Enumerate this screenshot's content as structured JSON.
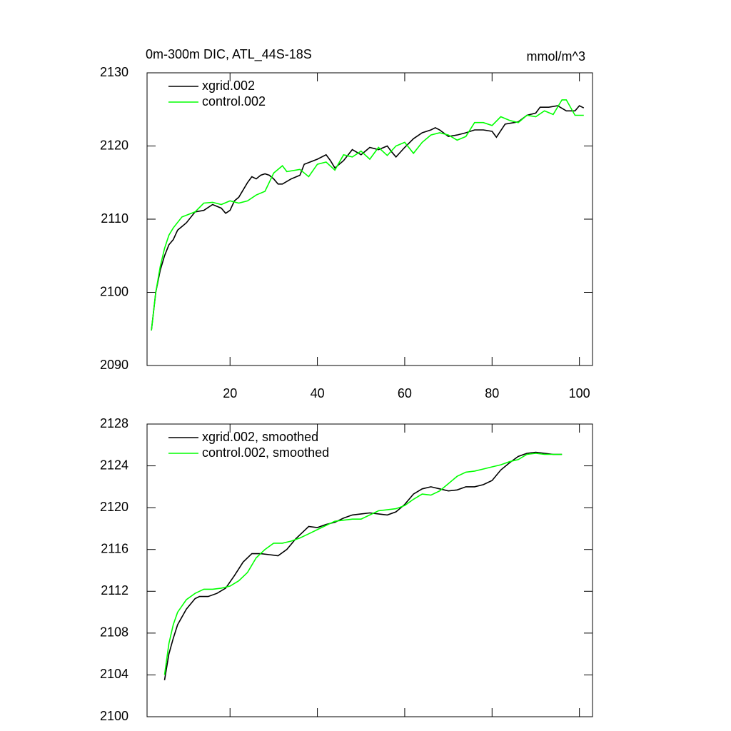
{
  "chart_data": [
    {
      "type": "line",
      "title": "0m-300m DIC, ATL_44S-18S",
      "units": "mmol/m^3",
      "xlim": [
        1,
        103
      ],
      "xticks": [
        20,
        40,
        60,
        80,
        100
      ],
      "xtick_labels": true,
      "ylim": [
        2090,
        2130
      ],
      "yticks": [
        2090,
        2100,
        2110,
        2120,
        2130
      ],
      "series": [
        {
          "name": "xgrid.002",
          "color": "#000000",
          "x": [
            2,
            3,
            4,
            5,
            6,
            7,
            8,
            10,
            12,
            14,
            16,
            18,
            19,
            20,
            21,
            22,
            24,
            25,
            26,
            27,
            28,
            29,
            30,
            31,
            32,
            34,
            36,
            37,
            40,
            42,
            43,
            44,
            46,
            48,
            50,
            52,
            54,
            56,
            57,
            58,
            60,
            62,
            64,
            66,
            67,
            68,
            70,
            72,
            74,
            76,
            78,
            80,
            81,
            83,
            86,
            88,
            90,
            91,
            93,
            95,
            97,
            99,
            100,
            101
          ],
          "values": [
            2094.8,
            2100,
            2103,
            2105,
            2106.5,
            2107.2,
            2108.5,
            2109.5,
            2111,
            2111.2,
            2112,
            2111.5,
            2110.8,
            2111.2,
            2112.5,
            2113,
            2115,
            2115.8,
            2115.5,
            2116,
            2116.2,
            2116,
            2115.5,
            2114.8,
            2114.8,
            2115.5,
            2116,
            2117.5,
            2118.2,
            2118.8,
            2118,
            2117,
            2118,
            2119.5,
            2118.8,
            2119.8,
            2119.5,
            2120,
            2119.2,
            2118.5,
            2119.8,
            2121,
            2121.8,
            2122.2,
            2122.5,
            2122.2,
            2121.3,
            2121.5,
            2121.8,
            2122.2,
            2122.2,
            2122,
            2121.2,
            2123,
            2123.3,
            2124.2,
            2124.5,
            2125.3,
            2125.3,
            2125.5,
            2124.8,
            2124.8,
            2125.5,
            2125.2
          ]
        },
        {
          "name": "control.002",
          "color": "#00ff00",
          "x": [
            2,
            3,
            4,
            5,
            6,
            7,
            9,
            12,
            14,
            16,
            18,
            20,
            22,
            24,
            26,
            28,
            30,
            32,
            33,
            36,
            38,
            40,
            42,
            44,
            46,
            48,
            50,
            52,
            54,
            56,
            58,
            60,
            62,
            64,
            66,
            68,
            70,
            72,
            74,
            76,
            78,
            80,
            82,
            84,
            86,
            88,
            90,
            92,
            94,
            96,
            97,
            99,
            101
          ],
          "values": [
            2094.8,
            2100,
            2103.5,
            2106,
            2107.8,
            2108.8,
            2110.3,
            2111,
            2112.2,
            2112.3,
            2112,
            2112.5,
            2112.2,
            2112.5,
            2113.3,
            2113.8,
            2116.3,
            2117.3,
            2116.5,
            2116.8,
            2115.8,
            2117.5,
            2117.8,
            2116.7,
            2118.8,
            2118.5,
            2119.3,
            2118.2,
            2119.8,
            2118.7,
            2120,
            2120.5,
            2119,
            2120.5,
            2121.5,
            2121.8,
            2121.5,
            2120.8,
            2121.3,
            2123.2,
            2123.2,
            2122.8,
            2124,
            2123.5,
            2123.2,
            2124.2,
            2124,
            2124.8,
            2124.3,
            2126.3,
            2126.3,
            2124.2,
            2124.2
          ]
        }
      ]
    },
    {
      "type": "line",
      "xlim": [
        1,
        103
      ],
      "xticks": [
        20,
        40,
        60,
        80,
        100
      ],
      "xtick_labels": false,
      "ylim": [
        2100,
        2128
      ],
      "yticks": [
        2100,
        2104,
        2108,
        2112,
        2116,
        2120,
        2124,
        2128
      ],
      "series": [
        {
          "name": "xgrid.002, smoothed",
          "color": "#000000",
          "x": [
            5,
            6,
            7,
            8,
            10,
            12,
            13,
            15,
            17,
            19,
            21,
            23,
            25,
            27,
            29,
            31,
            33,
            35,
            37,
            38,
            40,
            42,
            44,
            46,
            48,
            50,
            52,
            54,
            56,
            58,
            60,
            62,
            64,
            66,
            68,
            70,
            72,
            74,
            76,
            78,
            80,
            82,
            84,
            86,
            88,
            90,
            92,
            94,
            96
          ],
          "values": [
            2103.5,
            2106,
            2107.5,
            2108.8,
            2110.3,
            2111.3,
            2111.5,
            2111.5,
            2111.8,
            2112.3,
            2113.5,
            2114.8,
            2115.6,
            2115.6,
            2115.5,
            2115.4,
            2116,
            2117,
            2117.8,
            2118.2,
            2118.1,
            2118.4,
            2118.6,
            2119,
            2119.3,
            2119.4,
            2119.5,
            2119.4,
            2119.3,
            2119.6,
            2120.3,
            2121.3,
            2121.8,
            2122,
            2121.8,
            2121.6,
            2121.7,
            2122,
            2122,
            2122.2,
            2122.6,
            2123.6,
            2124.3,
            2124.9,
            2125.2,
            2125.3,
            2125.2,
            2125.1,
            2125.1
          ]
        },
        {
          "name": "control.002, smoothed",
          "color": "#00ff00",
          "x": [
            5,
            6,
            7,
            8,
            10,
            12,
            14,
            16,
            18,
            20,
            22,
            24,
            26,
            28,
            30,
            32,
            34,
            36,
            38,
            40,
            42,
            44,
            46,
            48,
            50,
            52,
            54,
            56,
            58,
            60,
            62,
            64,
            66,
            68,
            70,
            72,
            74,
            76,
            78,
            80,
            82,
            84,
            86,
            88,
            90,
            92,
            94,
            96
          ],
          "values": [
            2104,
            2107,
            2108.8,
            2110,
            2111.2,
            2111.8,
            2112.2,
            2112.2,
            2112.3,
            2112.5,
            2113,
            2113.8,
            2115.2,
            2116,
            2116.6,
            2116.6,
            2116.8,
            2117.1,
            2117.5,
            2117.9,
            2118.3,
            2118.7,
            2118.8,
            2118.9,
            2118.9,
            2119.3,
            2119.7,
            2119.8,
            2119.9,
            2120.2,
            2120.8,
            2121.3,
            2121.2,
            2121.6,
            2122.3,
            2123,
            2123.4,
            2123.5,
            2123.7,
            2123.9,
            2124.1,
            2124.4,
            2124.6,
            2125.1,
            2125.2,
            2125.1,
            2125.1,
            2125.1
          ]
        }
      ]
    }
  ]
}
